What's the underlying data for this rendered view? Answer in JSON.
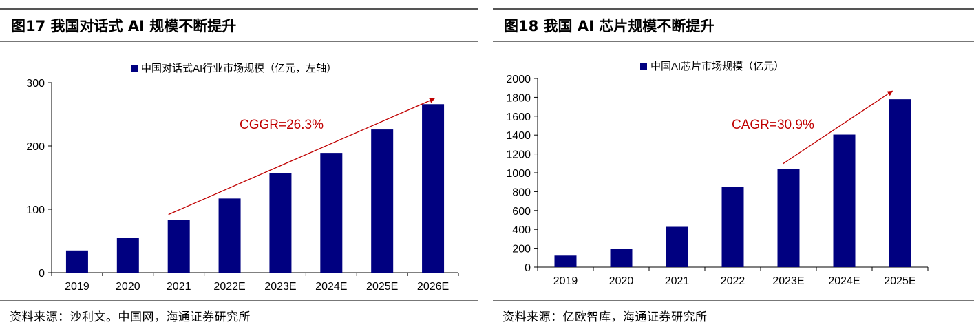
{
  "left": {
    "title": "图17 我国对话式 AI 规模不断提升",
    "source": "资料来源：沙利文。中国网，海通证券研究所",
    "annotation": "CGGR=26.3%"
  },
  "right": {
    "title": "图18 我国 AI 芯片规模不断提升",
    "source": "资料来源：亿欧智库，海通证券研究所",
    "annotation": "CAGR=30.9%"
  },
  "chart_data": [
    {
      "type": "bar",
      "title": "",
      "legend": "中国对话式AI行业市场规模（亿元，左轴）",
      "legend_position": "top",
      "categories": [
        "2019",
        "2020",
        "2021",
        "2022E",
        "2023E",
        "2024E",
        "2025E",
        "2026E"
      ],
      "values": [
        35,
        55,
        83,
        117,
        157,
        189,
        226,
        266
      ],
      "ylim": [
        0,
        300
      ],
      "yticks": [
        "0",
        "100",
        "200",
        "300"
      ],
      "grid": false,
      "bar_color": "#000080",
      "trend_arrow": {
        "from_category": "2021",
        "to_category": "2026E",
        "label": "CGGR=26.3%",
        "color": "#C00000"
      }
    },
    {
      "type": "bar",
      "title": "",
      "legend": "中国AI芯片市场规模（亿元）",
      "legend_position": "top",
      "categories": [
        "2019",
        "2020",
        "2021",
        "2022",
        "2023E",
        "2024E",
        "2025E"
      ],
      "values": [
        122,
        191,
        427,
        850,
        1038,
        1405,
        1780
      ],
      "ylim": [
        0,
        2000
      ],
      "yticks": [
        "0",
        "200",
        "400",
        "600",
        "800",
        "1000",
        "1200",
        "1400",
        "1600",
        "1800",
        "2000"
      ],
      "grid": false,
      "bar_color": "#000080",
      "trend_arrow": {
        "from_category": "2023E",
        "to_category": "2025E",
        "label": "CAGR=30.9%",
        "color": "#C00000"
      }
    }
  ]
}
